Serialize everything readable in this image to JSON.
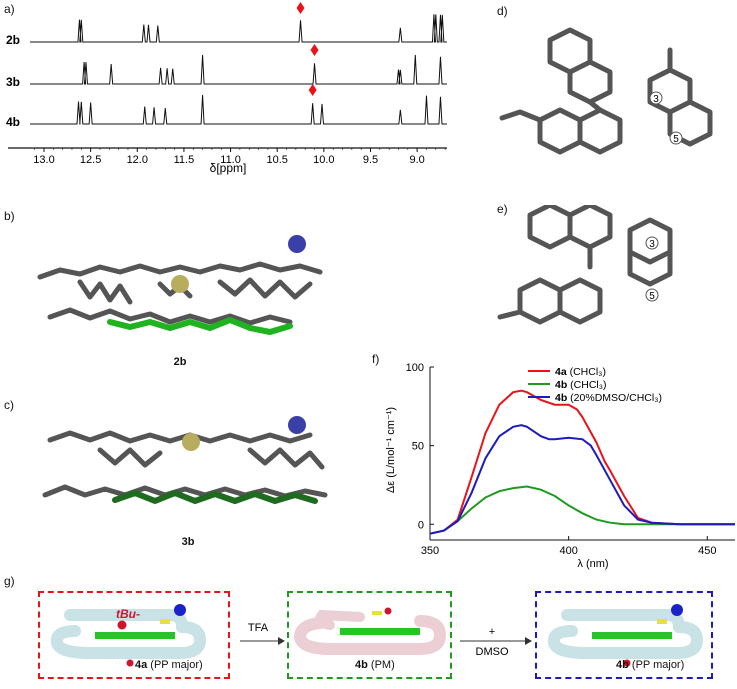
{
  "panels": {
    "a": "a)",
    "b": "b)",
    "c": "c)",
    "d": "d)",
    "e": "e)",
    "f": "f)",
    "g": "g)"
  },
  "nmr": {
    "traces": [
      {
        "label": "2b",
        "marker_ppm": 10.25,
        "peaks_ppm": [
          12.62,
          12.6,
          11.93,
          11.88,
          11.78,
          10.25,
          9.18,
          8.82,
          8.8,
          8.75,
          8.73
        ]
      },
      {
        "label": "3b",
        "marker_ppm": 10.1,
        "peaks_ppm": [
          12.57,
          12.55,
          12.28,
          11.75,
          11.68,
          11.62,
          11.3,
          10.1,
          9.2,
          9.18,
          9.02,
          8.75
        ]
      },
      {
        "label": "4b",
        "marker_ppm": 10.12,
        "peaks_ppm": [
          12.63,
          12.6,
          12.5,
          11.92,
          11.82,
          11.7,
          11.3,
          10.12,
          10.02,
          9.18,
          8.9,
          8.75
        ]
      }
    ],
    "xticks": [
      "13.0",
      "12.5",
      "12.0",
      "11.5",
      "11.0",
      "10.5",
      "10.0",
      "9.5",
      "9.0"
    ],
    "xlabel": "δ[ppm]",
    "marker_color": "#e8141a"
  },
  "captions": {
    "b": "2b",
    "c": "3b"
  },
  "atom_labels": {
    "three": "3",
    "five": "5"
  },
  "chart_data": {
    "type": "line",
    "xlabel": "λ (nm)",
    "ylabel": "Δε (L/mol⁻¹ cm⁻¹)",
    "xlim": [
      350,
      460
    ],
    "ylim": [
      -10,
      100
    ],
    "xticks": [
      "350",
      "400",
      "450"
    ],
    "yticks": [
      "0",
      "50",
      "100"
    ],
    "legend_position": "top-right",
    "series": [
      {
        "name": "4a (CHCl3)",
        "name_bold": "4a",
        "name_rest": " (CHCl₃)",
        "color": "#e8141a",
        "x": [
          350,
          355,
          360,
          365,
          370,
          375,
          380,
          383,
          385,
          390,
          395,
          400,
          403,
          405,
          410,
          413,
          415,
          420,
          425,
          430,
          440,
          450,
          460
        ],
        "y": [
          -6,
          -4,
          3,
          30,
          58,
          76,
          84,
          85,
          84,
          79,
          76,
          76,
          73,
          68,
          52,
          40,
          34,
          18,
          4,
          1,
          0,
          0,
          0
        ]
      },
      {
        "name": "4b (CHCl3)",
        "name_bold": "4b",
        "name_rest": " (CHCl₃)",
        "color": "#1f9a1f",
        "x": [
          350,
          355,
          360,
          365,
          370,
          375,
          380,
          385,
          390,
          395,
          400,
          405,
          410,
          415,
          420,
          430,
          440,
          450,
          460
        ],
        "y": [
          -6,
          -4,
          2,
          10,
          17,
          21,
          23,
          24,
          22,
          18,
          12,
          7,
          3,
          1,
          0,
          0,
          0,
          0,
          0
        ]
      },
      {
        "name": "4b (20%DMSO/CHCl3)",
        "name_bold": "4b",
        "name_rest": " (20%DMSO/CHCl₃)",
        "color": "#1b1bbf",
        "x": [
          350,
          355,
          360,
          365,
          370,
          375,
          380,
          383,
          385,
          390,
          393,
          395,
          400,
          405,
          408,
          410,
          415,
          420,
          425,
          430,
          440,
          450,
          460
        ],
        "y": [
          -6,
          -4,
          2,
          20,
          42,
          56,
          62,
          63,
          62,
          56,
          54,
          54,
          55,
          54,
          50,
          44,
          28,
          12,
          3,
          1,
          0,
          0,
          0
        ]
      }
    ]
  },
  "scheme": {
    "tbu_label": "tBu-",
    "tfa_label": "TFA",
    "dmso_plus": "+",
    "dmso_label": "DMSO",
    "box1": {
      "compound": "4a",
      "detail": " (PP major)",
      "color": "#e8141a"
    },
    "box2": {
      "compound": "4b",
      "detail": " (PM)",
      "color": "#1f9a1f"
    },
    "box3": {
      "compound": "4b",
      "detail": " (PP major)",
      "color": "#1b1bbf"
    }
  }
}
